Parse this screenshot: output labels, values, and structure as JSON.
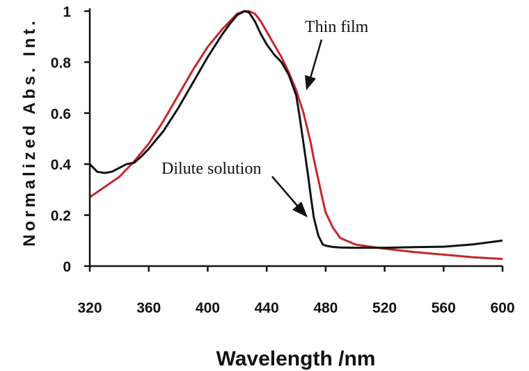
{
  "chart_data": {
    "type": "line",
    "xlabel": "Wavelength /nm",
    "ylabel": "Normalized Abs. Int.",
    "xlim": [
      320,
      600
    ],
    "ylim": [
      0,
      1
    ],
    "x_ticks": [
      "320",
      "360",
      "400",
      "440",
      "480",
      "520",
      "560",
      "600"
    ],
    "y_ticks": [
      "0",
      "0.2",
      "0.4",
      "0.6",
      "0.8",
      "1"
    ],
    "grid": false,
    "annotations": [
      {
        "text": "Thin film",
        "series": "Thin film"
      },
      {
        "text": "Dilute solution",
        "series": "Dilute solution"
      }
    ],
    "series": [
      {
        "name": "Dilute solution",
        "color": "#111111",
        "x": [
          320,
          325,
          330,
          335,
          340,
          345,
          350,
          355,
          360,
          370,
          380,
          390,
          400,
          410,
          415,
          420,
          425,
          428,
          432,
          436,
          440,
          445,
          450,
          455,
          460,
          462,
          464,
          466,
          468,
          470,
          472,
          475,
          478,
          480,
          485,
          490,
          500,
          520,
          540,
          560,
          580,
          600
        ],
        "y": [
          0.4,
          0.37,
          0.365,
          0.37,
          0.385,
          0.4,
          0.405,
          0.43,
          0.46,
          0.53,
          0.62,
          0.72,
          0.82,
          0.91,
          0.95,
          0.985,
          1.0,
          0.995,
          0.96,
          0.91,
          0.87,
          0.83,
          0.8,
          0.75,
          0.67,
          0.6,
          0.52,
          0.44,
          0.36,
          0.27,
          0.19,
          0.12,
          0.085,
          0.08,
          0.075,
          0.073,
          0.072,
          0.072,
          0.074,
          0.076,
          0.085,
          0.1
        ]
      },
      {
        "name": "Thin film",
        "color": "#c8242b",
        "x": [
          320,
          330,
          340,
          350,
          360,
          370,
          380,
          390,
          400,
          410,
          415,
          420,
          425,
          428,
          432,
          436,
          440,
          445,
          450,
          455,
          460,
          465,
          468,
          470,
          472,
          475,
          478,
          480,
          485,
          490,
          500,
          520,
          540,
          560,
          580,
          600
        ],
        "y": [
          0.27,
          0.31,
          0.35,
          0.41,
          0.48,
          0.57,
          0.67,
          0.77,
          0.86,
          0.93,
          0.96,
          0.99,
          1.0,
          1.0,
          0.99,
          0.96,
          0.92,
          0.87,
          0.82,
          0.76,
          0.69,
          0.6,
          0.53,
          0.48,
          0.42,
          0.34,
          0.26,
          0.21,
          0.15,
          0.11,
          0.085,
          0.068,
          0.055,
          0.045,
          0.035,
          0.028
        ]
      }
    ]
  }
}
